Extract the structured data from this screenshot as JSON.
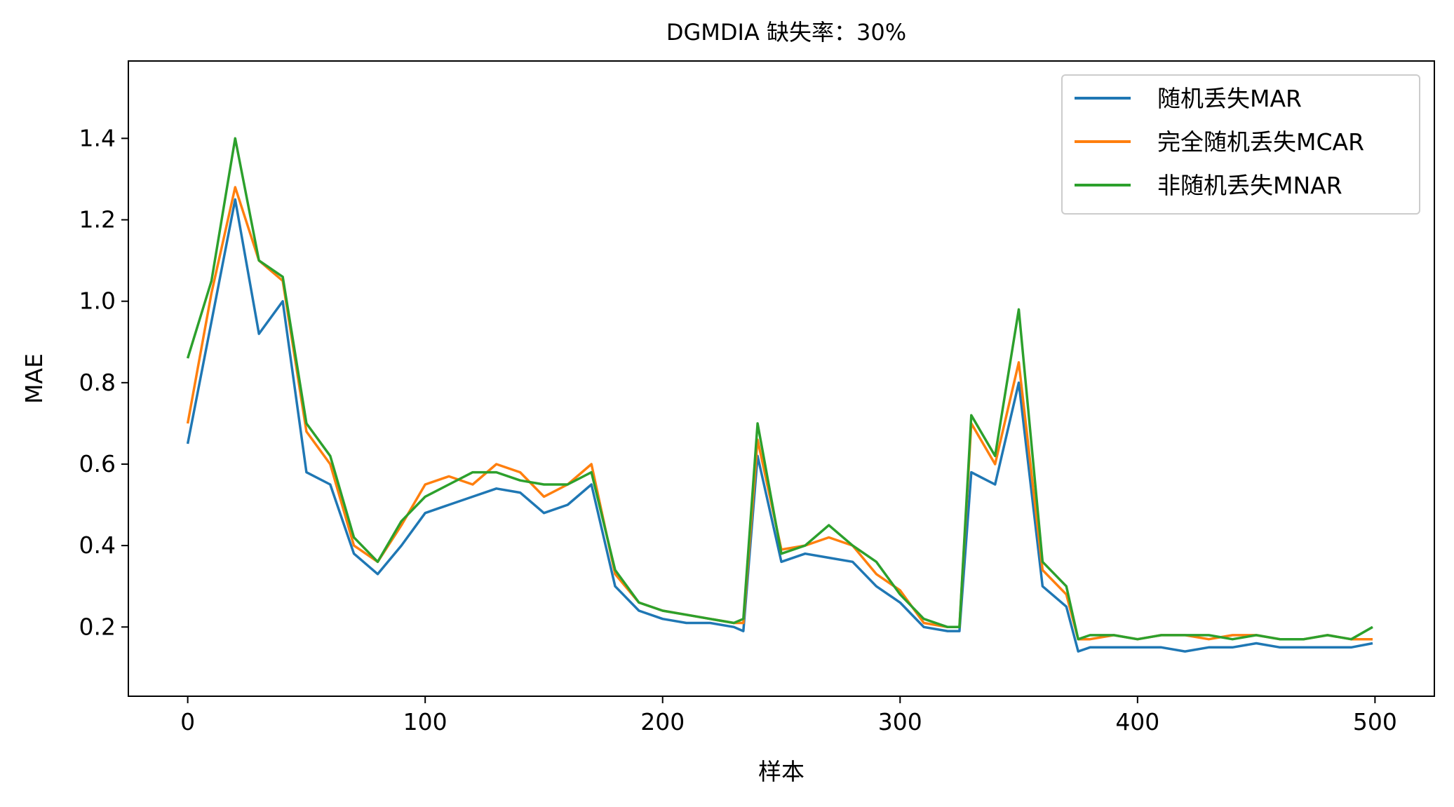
{
  "chart_data": {
    "type": "line",
    "title": "DGMDIA 缺失率：30%",
    "xlabel": "样本",
    "ylabel": "MAE",
    "xlim": [
      -25,
      525
    ],
    "ylim": [
      0.03,
      1.59
    ],
    "xticks": [
      0,
      100,
      200,
      300,
      400,
      500
    ],
    "yticks": [
      0.2,
      0.4,
      0.6,
      0.8,
      1.0,
      1.2,
      1.4
    ],
    "xtick_labels": [
      "0",
      "100",
      "200",
      "300",
      "400",
      "500"
    ],
    "ytick_labels": [
      "0.2",
      "0.4",
      "0.6",
      "0.8",
      "1.0",
      "1.2",
      "1.4"
    ],
    "grid": false,
    "legend_position": "top-right",
    "x": [
      0,
      10,
      20,
      30,
      40,
      50,
      60,
      70,
      80,
      90,
      100,
      110,
      120,
      130,
      140,
      150,
      160,
      170,
      180,
      190,
      200,
      210,
      220,
      230,
      234,
      240,
      250,
      260,
      270,
      280,
      290,
      300,
      310,
      320,
      325,
      330,
      340,
      350,
      360,
      370,
      375,
      380,
      390,
      400,
      410,
      420,
      430,
      440,
      450,
      460,
      470,
      480,
      490,
      499
    ],
    "series": [
      {
        "name": "随机丢失MAR",
        "color": "#1f77b4",
        "values": [
          0.65,
          0.95,
          1.25,
          0.92,
          1.0,
          0.58,
          0.55,
          0.38,
          0.33,
          0.4,
          0.48,
          0.5,
          0.52,
          0.54,
          0.53,
          0.48,
          0.5,
          0.55,
          0.3,
          0.24,
          0.22,
          0.21,
          0.21,
          0.2,
          0.19,
          0.62,
          0.36,
          0.38,
          0.37,
          0.36,
          0.3,
          0.26,
          0.2,
          0.19,
          0.19,
          0.58,
          0.55,
          0.8,
          0.3,
          0.25,
          0.14,
          0.15,
          0.15,
          0.15,
          0.15,
          0.14,
          0.15,
          0.15,
          0.16,
          0.15,
          0.15,
          0.15,
          0.15,
          0.16
        ]
      },
      {
        "name": "完全随机丢失MCAR",
        "color": "#ff7f0e",
        "values": [
          0.7,
          1.02,
          1.28,
          1.1,
          1.05,
          0.68,
          0.6,
          0.4,
          0.36,
          0.45,
          0.55,
          0.57,
          0.55,
          0.6,
          0.58,
          0.52,
          0.55,
          0.6,
          0.33,
          0.26,
          0.24,
          0.23,
          0.22,
          0.21,
          0.21,
          0.66,
          0.39,
          0.4,
          0.42,
          0.4,
          0.33,
          0.29,
          0.21,
          0.2,
          0.2,
          0.7,
          0.6,
          0.85,
          0.34,
          0.28,
          0.17,
          0.17,
          0.18,
          0.17,
          0.18,
          0.18,
          0.17,
          0.18,
          0.18,
          0.17,
          0.17,
          0.18,
          0.17,
          0.17
        ]
      },
      {
        "name": "非随机丢失MNAR",
        "color": "#2ca02c",
        "values": [
          0.86,
          1.05,
          1.4,
          1.1,
          1.06,
          0.7,
          0.62,
          0.42,
          0.36,
          0.46,
          0.52,
          0.55,
          0.58,
          0.58,
          0.56,
          0.55,
          0.55,
          0.58,
          0.34,
          0.26,
          0.24,
          0.23,
          0.22,
          0.21,
          0.22,
          0.7,
          0.38,
          0.4,
          0.45,
          0.4,
          0.36,
          0.28,
          0.22,
          0.2,
          0.2,
          0.72,
          0.62,
          0.98,
          0.36,
          0.3,
          0.17,
          0.18,
          0.18,
          0.17,
          0.18,
          0.18,
          0.18,
          0.17,
          0.18,
          0.17,
          0.17,
          0.18,
          0.17,
          0.2
        ]
      }
    ]
  }
}
